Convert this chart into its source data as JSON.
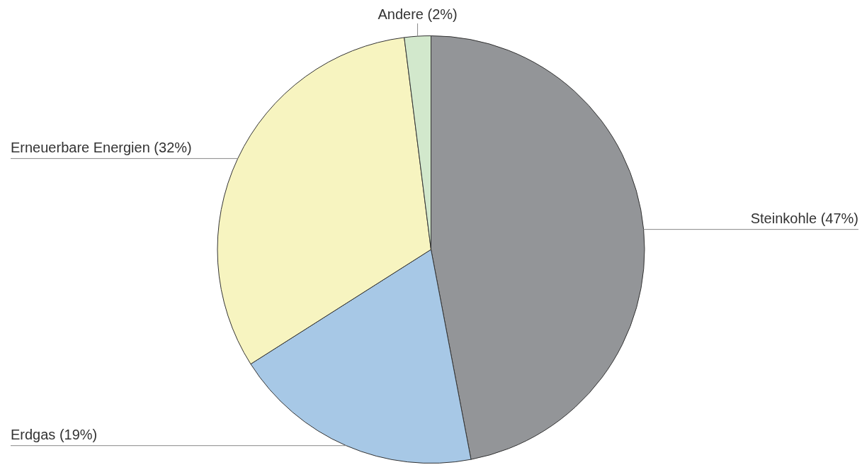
{
  "chart_data": {
    "type": "pie",
    "categories": [
      "Steinkohle (47%)",
      "Erdgas (19%)",
      "Erneuerbare Energien (32%)",
      "Andere (2%)"
    ],
    "values": [
      47,
      19,
      32,
      2
    ],
    "colors": [
      "#939598",
      "#a7c8e6",
      "#f7f4c0",
      "#d2e8cc"
    ],
    "legend": false
  }
}
